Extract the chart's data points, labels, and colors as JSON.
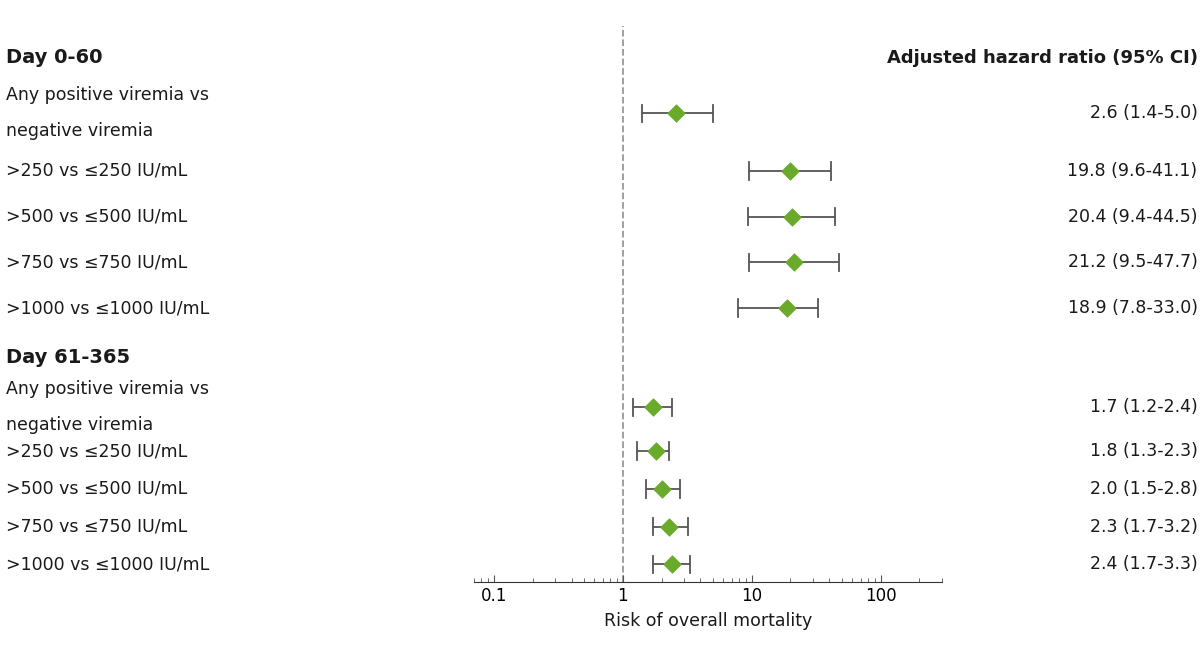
{
  "groups": [
    {
      "label": "Day 0-60",
      "rows": [
        {
          "label_line1": "Any positive viremia vs",
          "label_line2": "negative viremia",
          "estimate": 2.6,
          "ci_low": 1.4,
          "ci_high": 5.0,
          "annotation": "2.6 (1.4-5.0)"
        },
        {
          "label_line1": ">250 vs ≤250 IU/mL",
          "label_line2": "",
          "estimate": 19.8,
          "ci_low": 9.6,
          "ci_high": 41.1,
          "annotation": "19.8 (9.6-41.1)"
        },
        {
          "label_line1": ">500 vs ≤500 IU/mL",
          "label_line2": "",
          "estimate": 20.4,
          "ci_low": 9.4,
          "ci_high": 44.5,
          "annotation": "20.4 (9.4-44.5)"
        },
        {
          "label_line1": ">750 vs ≤750 IU/mL",
          "label_line2": "",
          "estimate": 21.2,
          "ci_low": 9.5,
          "ci_high": 47.7,
          "annotation": "21.2 (9.5-47.7)"
        },
        {
          "label_line1": ">1000 vs ≤1000 IU/mL",
          "label_line2": "",
          "estimate": 18.9,
          "ci_low": 7.8,
          "ci_high": 33.0,
          "annotation": "18.9 (7.8-33.0)"
        }
      ]
    },
    {
      "label": "Day 61-365",
      "rows": [
        {
          "label_line1": "Any positive viremia vs",
          "label_line2": "negative viremia",
          "estimate": 1.7,
          "ci_low": 1.2,
          "ci_high": 2.4,
          "annotation": "1.7 (1.2-2.4)"
        },
        {
          "label_line1": ">250 vs ≤250 IU/mL",
          "label_line2": "",
          "estimate": 1.8,
          "ci_low": 1.3,
          "ci_high": 2.3,
          "annotation": "1.8 (1.3-2.3)"
        },
        {
          "label_line1": ">500 vs ≤500 IU/mL",
          "label_line2": "",
          "estimate": 2.0,
          "ci_low": 1.5,
          "ci_high": 2.8,
          "annotation": "2.0 (1.5-2.8)"
        },
        {
          "label_line1": ">750 vs ≤750 IU/mL",
          "label_line2": "",
          "estimate": 2.3,
          "ci_low": 1.7,
          "ci_high": 3.2,
          "annotation": "2.3 (1.7-3.2)"
        },
        {
          "label_line1": ">1000 vs ≤1000 IU/mL",
          "label_line2": "",
          "estimate": 2.4,
          "ci_low": 1.7,
          "ci_high": 3.3,
          "annotation": "2.4 (1.7-3.3)"
        }
      ]
    }
  ],
  "xlim": [
    0.07,
    300
  ],
  "xlabel": "Risk of overall mortality",
  "col_header": "Adjusted hazard ratio (95% CI)",
  "diamond_color": "#6aaa2a",
  "ci_color": "#555555",
  "ref_line_x": 1.0,
  "background_color": "#ffffff",
  "label_fontsize": 12.5,
  "header_fontsize": 13,
  "group_label_fontsize": 14,
  "annotation_fontsize": 12.5,
  "xlabel_fontsize": 12.5,
  "tick_fontsize": 12
}
